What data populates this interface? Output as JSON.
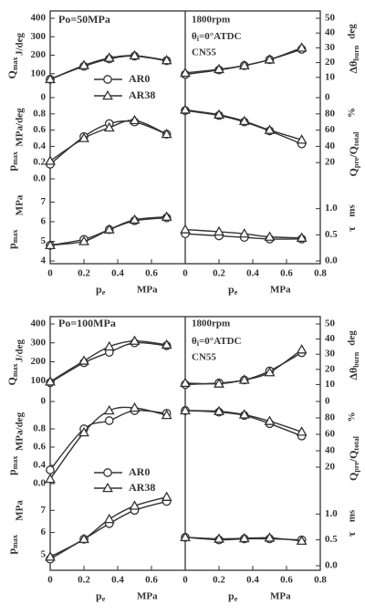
{
  "chart_data": [
    {
      "type": "line",
      "panel": "top",
      "annotations": {
        "left_title": "Po=50MPa",
        "rpm": "1800rpm",
        "theta": "θ",
        "theta_sub": "i",
        "theta_rest": "=0°ATDC",
        "fuel": "CN55"
      },
      "legend": [
        {
          "name": "AR0",
          "marker": "circle"
        },
        {
          "name": "AR38",
          "marker": "triangle"
        }
      ],
      "x_ticks_left": [
        "0",
        "0.2",
        "0.4",
        "0.6"
      ],
      "x_ticks_right": [
        "0",
        "0.2",
        "0.4",
        "0.6",
        "0.8"
      ],
      "xlabel_left_sym": "p",
      "xlabel_left_sub": "e",
      "xlabel_left_unit": "MPa",
      "xlabel_right_sym": "p",
      "xlabel_right_sub": "e",
      "xlabel_right_unit": "MPa",
      "left_ylabels": {
        "q_sym": "Q",
        "q_sub": "max",
        "q_unit": "J/deg",
        "dp_sym": "p",
        "dp_sub": "max",
        "dp_unit": "MPa/deg",
        "p_sym": "p",
        "p_sub": "max",
        "p_unit": "MPa"
      },
      "right_ylabels": {
        "theta_sym": "Δθ",
        "theta_sub": "burn",
        "theta_unit": "deg",
        "qr_sym1": "Q",
        "qr_sub1": "pre",
        "qr_slash": "/Q",
        "qr_sub2": "total",
        "qr_unit": "%",
        "tau_sym": "τ",
        "tau_unit": "ms"
      },
      "left_ticks": {
        "q": [
          "400",
          "300",
          "200",
          "100"
        ],
        "dp": [
          "0",
          "0.8",
          "0.6",
          "0.4",
          "0.2",
          "0.0"
        ],
        "p": [
          "7",
          "6",
          "5",
          "4"
        ]
      },
      "right_ticks": {
        "theta": [
          "50",
          "40",
          "30",
          "20",
          "10"
        ],
        "qr": [
          "0",
          "80",
          "60",
          "40",
          "20"
        ],
        "tau": [
          "1.0",
          "0.5",
          "0.0"
        ]
      },
      "left_subplots": {
        "q": {
          "ylim": [
            0,
            400
          ],
          "ypix": [
            20,
            101
          ],
          "series": [
            {
              "marker": "circle",
              "x": [
                0,
                0.2,
                0.35,
                0.5,
                0.69
              ],
              "y": [
                70,
                140,
                180,
                195,
                170
              ]
            },
            {
              "marker": "triangle",
              "x": [
                0,
                0.2,
                0.35,
                0.5,
                0.69
              ],
              "y": [
                70,
                145,
                185,
                198,
                172
              ]
            }
          ]
        },
        "dp": {
          "ylim": [
            0.0,
            1.0
          ],
          "ypix": [
            107,
            196
          ],
          "series": [
            {
              "marker": "circle",
              "x": [
                0,
                0.2,
                0.35,
                0.5,
                0.69
              ],
              "y": [
                0.18,
                0.52,
                0.68,
                0.7,
                0.55
              ]
            },
            {
              "marker": "triangle",
              "x": [
                0,
                0.2,
                0.35,
                0.5,
                0.69
              ],
              "y": [
                0.22,
                0.5,
                0.63,
                0.72,
                0.55
              ]
            }
          ]
        },
        "p": {
          "ylim": [
            4,
            8
          ],
          "ypix": [
            200,
            286
          ],
          "series": [
            {
              "marker": "circle",
              "x": [
                0,
                0.2,
                0.35,
                0.5,
                0.69
              ],
              "y": [
                4.8,
                5.1,
                5.6,
                6.05,
                6.2
              ]
            },
            {
              "marker": "triangle",
              "x": [
                0,
                0.2,
                0.35,
                0.5,
                0.69
              ],
              "y": [
                4.8,
                5.0,
                5.6,
                6.1,
                6.25
              ]
            }
          ]
        }
      },
      "right_subplots": {
        "theta": {
          "ylim": [
            0,
            50
          ],
          "ypix": [
            20,
            101
          ],
          "series": [
            {
              "marker": "circle",
              "x": [
                0,
                0.2,
                0.35,
                0.5,
                0.69
              ],
              "y": [
                12,
                15,
                18,
                22,
                29
              ]
            },
            {
              "marker": "triangle",
              "x": [
                0,
                0.2,
                0.35,
                0.5,
                0.69
              ],
              "y": [
                13,
                15.5,
                18,
                22,
                30
              ]
            }
          ]
        },
        "qr": {
          "ylim": [
            0,
            100
          ],
          "ypix": [
            107,
            196
          ],
          "series": [
            {
              "marker": "circle",
              "x": [
                0,
                0.2,
                0.35,
                0.5,
                0.69
              ],
              "y": [
                84,
                78,
                70,
                59,
                43
              ]
            },
            {
              "marker": "triangle",
              "x": [
                0,
                0.2,
                0.35,
                0.5,
                0.69
              ],
              "y": [
                85,
                79,
                71,
                60,
                48
              ]
            }
          ]
        },
        "tau": {
          "ylim": [
            0,
            1.5
          ],
          "ypix": [
            200,
            286
          ],
          "series": [
            {
              "marker": "circle",
              "x": [
                0,
                0.2,
                0.35,
                0.5,
                0.69
              ],
              "y": [
                0.52,
                0.48,
                0.45,
                0.42,
                0.42
              ]
            },
            {
              "marker": "triangle",
              "x": [
                0,
                0.2,
                0.35,
                0.5,
                0.69
              ],
              "y": [
                0.6,
                0.56,
                0.52,
                0.46,
                0.44
              ]
            }
          ]
        }
      }
    },
    {
      "type": "line",
      "panel": "bottom",
      "annotations": {
        "left_title": "Po=100MPa",
        "rpm": "1800rpm",
        "theta": "θ",
        "theta_sub": "i",
        "theta_rest": "=0°ATDC",
        "fuel": "CN55"
      },
      "legend": [
        {
          "name": "AR0",
          "marker": "circle"
        },
        {
          "name": "AR38",
          "marker": "triangle"
        }
      ],
      "x_ticks_left": [
        "0",
        "0.2",
        "0.4",
        "0.6"
      ],
      "x_ticks_right": [
        "0",
        "0.2",
        "0.4",
        "0.6",
        "0.8"
      ],
      "xlabel_left_sym": "p",
      "xlabel_left_sub": "e",
      "xlabel_left_unit": "MPa",
      "xlabel_right_sym": "p",
      "xlabel_right_sub": "e",
      "xlabel_right_unit": "MPa",
      "left_ylabels": {
        "q_sym": "Q",
        "q_sub": "max",
        "q_unit": "J/deg",
        "dp_sym": "p",
        "dp_sub": "max",
        "dp_unit": "MPa/deg",
        "p_sym": "p",
        "p_sub": "max",
        "p_unit": "MPa"
      },
      "right_ylabels": {
        "theta_sym": "Δθ",
        "theta_sub": "burn",
        "theta_unit": "deg",
        "qr_sym1": "Q",
        "qr_sub1": "pre",
        "qr_slash": "/Q",
        "qr_sub2": "total",
        "qr_unit": "%",
        "tau_sym": "τ",
        "tau_unit": "ms"
      },
      "left_ticks": {
        "q": [
          "400",
          "300",
          "200",
          "100"
        ],
        "dp": [
          "0",
          "0.8",
          "0.6",
          "0.4",
          "0.0"
        ],
        "p": [
          "7",
          "6",
          "5"
        ]
      },
      "right_ticks": {
        "theta": [
          "50",
          "40",
          "30",
          "20",
          "10"
        ],
        "qr": [
          "0",
          "80",
          "60",
          "40",
          "20"
        ],
        "tau": [
          "1.0",
          "0.5",
          "0.0"
        ]
      },
      "left_subplots": {
        "q": {
          "ylim": [
            0,
            400
          ],
          "ypix": [
            355,
            438
          ],
          "series": [
            {
              "marker": "circle",
              "x": [
                0,
                0.2,
                0.35,
                0.5,
                0.69
              ],
              "y": [
                90,
                195,
                250,
                300,
                285
              ]
            },
            {
              "marker": "triangle",
              "x": [
                0,
                0.2,
                0.35,
                0.5,
                0.69
              ],
              "y": [
                95,
                205,
                280,
                310,
                290
              ]
            }
          ]
        },
        "dp": {
          "ylim": [
            0.2,
            1.1
          ],
          "ypix": [
            440,
            530
          ],
          "series": [
            {
              "marker": "circle",
              "x": [
                0,
                0.2,
                0.35,
                0.5,
                0.69
              ],
              "y": [
                0.35,
                0.8,
                0.89,
                1.0,
                0.97
              ]
            },
            {
              "marker": "triangle",
              "x": [
                0,
                0.2,
                0.35,
                0.5,
                0.69
              ],
              "y": [
                0.25,
                0.76,
                1.0,
                1.03,
                0.95
              ]
            }
          ]
        },
        "p": {
          "ylim": [
            4.5,
            8.0
          ],
          "ypix": [
            535,
            620
          ],
          "series": [
            {
              "marker": "circle",
              "x": [
                0,
                0.2,
                0.35,
                0.5,
                0.69
              ],
              "y": [
                4.8,
                5.7,
                6.4,
                7.0,
                7.4
              ]
            },
            {
              "marker": "triangle",
              "x": [
                0,
                0.2,
                0.35,
                0.5,
                0.69
              ],
              "y": [
                4.9,
                5.7,
                6.6,
                7.2,
                7.6
              ]
            }
          ]
        }
      },
      "right_subplots": {
        "theta": {
          "ylim": [
            0,
            50
          ],
          "ypix": [
            355,
            438
          ],
          "series": [
            {
              "marker": "circle",
              "x": [
                0,
                0.2,
                0.35,
                0.5,
                0.69
              ],
              "y": [
                10,
                11,
                13,
                19,
                31
              ]
            },
            {
              "marker": "triangle",
              "x": [
                0,
                0.2,
                0.35,
                0.5,
                0.69
              ],
              "y": [
                11,
                10.5,
                13,
                18,
                33
              ]
            }
          ]
        },
        "qr": {
          "ylim": [
            0,
            100
          ],
          "ypix": [
            440,
            530
          ],
          "series": [
            {
              "marker": "circle",
              "x": [
                0,
                0.2,
                0.35,
                0.5,
                0.69
              ],
              "y": [
                89,
                87,
                83,
                73,
                58
              ]
            },
            {
              "marker": "triangle",
              "x": [
                0,
                0.2,
                0.35,
                0.5,
                0.69
              ],
              "y": [
                89,
                88,
                84,
                76,
                63
              ]
            }
          ]
        },
        "tau": {
          "ylim": [
            0,
            1.5
          ],
          "ypix": [
            535,
            620
          ],
          "series": [
            {
              "marker": "circle",
              "x": [
                0,
                0.2,
                0.35,
                0.5,
                0.69
              ],
              "y": [
                0.55,
                0.5,
                0.52,
                0.52,
                0.5
              ]
            },
            {
              "marker": "triangle",
              "x": [
                0,
                0.2,
                0.35,
                0.5,
                0.69
              ],
              "y": [
                0.55,
                0.52,
                0.53,
                0.54,
                0.48
              ]
            }
          ]
        }
      }
    }
  ]
}
